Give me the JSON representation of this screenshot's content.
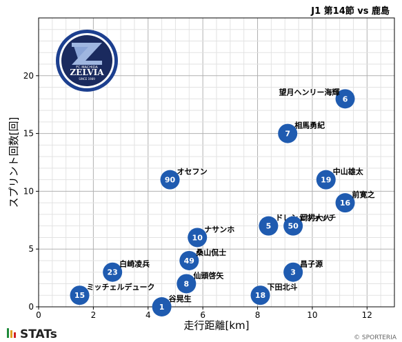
{
  "header": {
    "title": "J1 第14節 vs 鹿島"
  },
  "footer": {
    "brand": "STATs",
    "copyright": "© SPORTERIA"
  },
  "logo": {
    "top_text": "FC MACHIDA",
    "name": "ZELVIA",
    "since": "SINCE 1989",
    "colors": {
      "ring": "#1c3f8f",
      "inner": "#1a2a5e",
      "accent": "#8aa4d6"
    }
  },
  "chart_data": {
    "type": "scatter",
    "title": "J1 第14節 vs 鹿島",
    "xlabel": "走行距離[km]",
    "ylabel": "スプリント回数[回]",
    "xlim": [
      0,
      13
    ],
    "ylim": [
      0,
      25
    ],
    "xticks": [
      0,
      2,
      4,
      6,
      8,
      10,
      12
    ],
    "yticks": [
      0,
      5,
      10,
      15,
      20
    ],
    "grid": true,
    "marker_color": "#1f5bb0",
    "points": [
      {
        "number": "6",
        "name": "望月ヘンリー海輝",
        "x": 11.2,
        "y": 18
      },
      {
        "number": "7",
        "name": "相馬勇紀",
        "x": 9.1,
        "y": 15
      },
      {
        "number": "90",
        "name": "オセフン",
        "x": 4.8,
        "y": 11
      },
      {
        "number": "19",
        "name": "中山雄太",
        "x": 10.5,
        "y": 11
      },
      {
        "number": "16",
        "name": "前寛之",
        "x": 11.2,
        "y": 9
      },
      {
        "number": "5",
        "name": "ドレシェヴィッチ",
        "x": 8.4,
        "y": 7
      },
      {
        "number": "50",
        "name": "岡村大八",
        "x": 9.3,
        "y": 7
      },
      {
        "number": "10",
        "name": "ナサンホ",
        "x": 5.8,
        "y": 6
      },
      {
        "number": "49",
        "name": "桑山侃士",
        "x": 5.5,
        "y": 4
      },
      {
        "number": "23",
        "name": "白崎凌兵",
        "x": 2.7,
        "y": 3
      },
      {
        "number": "3",
        "name": "昌子源",
        "x": 9.3,
        "y": 3
      },
      {
        "number": "8",
        "name": "仙頭啓矢",
        "x": 5.4,
        "y": 2
      },
      {
        "number": "15",
        "name": "ミッチェルデューク",
        "x": 1.5,
        "y": 1
      },
      {
        "number": "18",
        "name": "下田北斗",
        "x": 8.1,
        "y": 1
      },
      {
        "number": "1",
        "name": "谷晃生",
        "x": 4.5,
        "y": 0
      }
    ]
  }
}
